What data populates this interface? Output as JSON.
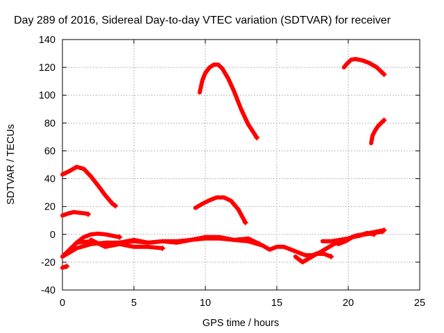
{
  "chart_data": {
    "type": "scatter",
    "title": "Day 289 of 2016, Sidereal Day-to-day VTEC variation (SDTVAR) for receiver",
    "xlabel": "GPS time / hours",
    "ylabel": "SDTVAR / TECUs",
    "xlim": [
      0,
      25
    ],
    "ylim": [
      -40,
      140
    ],
    "xticks": [
      0,
      5,
      10,
      15,
      20,
      25
    ],
    "yticks": [
      -40,
      -20,
      0,
      20,
      40,
      60,
      80,
      100,
      120,
      140
    ],
    "grid": true,
    "marker": "+",
    "color": "#ff0000",
    "series": [
      {
        "x": [
          0,
          0.5,
          1.0,
          1.5,
          2.0,
          2.5,
          3.0,
          3.5,
          3.7
        ],
        "y": [
          43,
          45.5,
          48.5,
          47,
          41.5,
          35,
          28,
          22,
          20.5
        ]
      },
      {
        "x": [
          0,
          0.4,
          0.8,
          1.2,
          1.6,
          1.8
        ],
        "y": [
          13.5,
          15,
          16,
          15.5,
          15,
          14.5
        ]
      },
      {
        "x": [
          0,
          0.3
        ],
        "y": [
          -24,
          -23
        ]
      },
      {
        "x": [
          9.3,
          9.8,
          10.3,
          10.8,
          11.3,
          11.8,
          12.3,
          12.8
        ],
        "y": [
          19,
          22,
          24.5,
          26.5,
          26.5,
          24,
          18,
          8.5
        ]
      },
      {
        "x": [
          9.6,
          9.8,
          10.0,
          10.3,
          10.6,
          10.9,
          11.2,
          11.6,
          12.0,
          12.5,
          13.0,
          13.6
        ],
        "y": [
          102,
          111,
          116,
          120,
          122,
          122,
          119,
          112,
          103,
          90,
          79,
          69.5
        ]
      },
      {
        "x": [
          19.7,
          19.9,
          20.2,
          20.5,
          21.0,
          21.5,
          22.0,
          22.5
        ],
        "y": [
          120,
          122.5,
          125.5,
          126,
          125,
          123,
          120,
          115
        ]
      },
      {
        "x": [
          21.6,
          21.7,
          21.9,
          22.1,
          22.3,
          22.5
        ],
        "y": [
          65.5,
          71,
          75,
          78,
          80,
          82
        ]
      },
      {
        "x": [
          0,
          0.5,
          1.0,
          1.5,
          2.0,
          2.5,
          3.0,
          3.5,
          4.0
        ],
        "y": [
          -16,
          -11,
          -6,
          -2,
          0,
          0.5,
          0,
          -1,
          -2
        ]
      },
      {
        "x": [
          0,
          1.0,
          2.0,
          3.0,
          4.0,
          5.0,
          6.0,
          7.0,
          8.0,
          9.0,
          10.0,
          11.0,
          12.0,
          13.0,
          14.0,
          14.5,
          15.0,
          15.5,
          16.0,
          16.5,
          17.0,
          17.5,
          18.0,
          18.5,
          19.0,
          19.5,
          20.0,
          20.5,
          21.0,
          21.5,
          22.0,
          22.5
        ],
        "y": [
          -16,
          -10,
          -7,
          -6,
          -6,
          -5,
          -6,
          -5,
          -5,
          -4,
          -3,
          -3,
          -4,
          -5,
          -8,
          -11,
          -9,
          -9,
          -11,
          -13,
          -15,
          -15,
          -13,
          -10,
          -7,
          -5,
          -3,
          -1,
          0,
          1,
          2,
          3
        ]
      },
      {
        "x": [
          1,
          2,
          3,
          4,
          5,
          6,
          7,
          8,
          9,
          10,
          11,
          12,
          13,
          13.8
        ],
        "y": [
          -6,
          -5,
          -8,
          -6,
          -4,
          -6,
          -5,
          -6,
          -4,
          -2,
          -2,
          -4,
          -3,
          -7
        ]
      },
      {
        "x": [
          2,
          3,
          4,
          5,
          6,
          7
        ],
        "y": [
          -4,
          -9,
          -7,
          -9,
          -9,
          -10
        ]
      },
      {
        "x": [
          16.3,
          16.8,
          17.3,
          17.8,
          18.3,
          18.8
        ],
        "y": [
          -16,
          -20,
          -17,
          -14,
          -14,
          -16
        ]
      },
      {
        "x": [
          18.2,
          18.8,
          19.4,
          20.0,
          20.6,
          21.2,
          21.8,
          22.4
        ],
        "y": [
          -5,
          -5,
          -4,
          -3,
          -1,
          0,
          1,
          2
        ]
      },
      {
        "x": [
          19.3,
          19.8,
          20.3,
          20.8,
          21.3,
          21.8
        ],
        "y": [
          -7,
          -5,
          -2,
          -1,
          1,
          0
        ]
      }
    ]
  }
}
